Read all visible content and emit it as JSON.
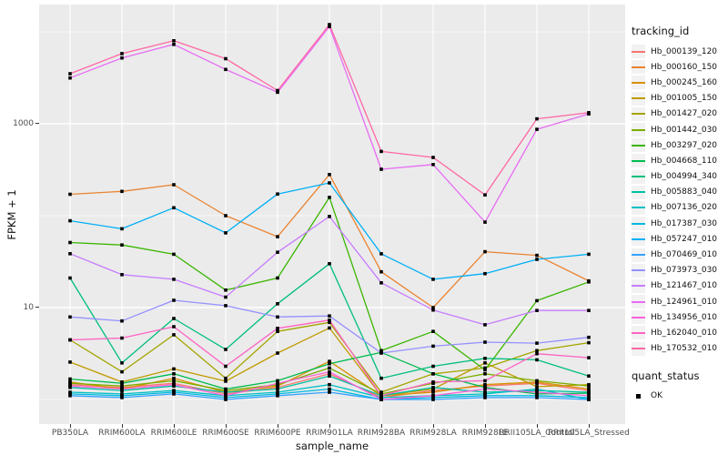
{
  "chart_data": {
    "type": "line",
    "title": "",
    "xlabel": "sample_name",
    "ylabel": "FPKM + 1",
    "x_categories": [
      "PB350LA",
      "RRIM600LA",
      "RRIM600LE",
      "RRIM600SE",
      "RRIM600PE",
      "RRIM901LA",
      "RRIM928BA",
      "RRIM928LA",
      "RRIM928LE",
      "RRII105LA_Control",
      "RRII105LA_Stressed"
    ],
    "y_scale": "log10",
    "y_tick_labels": [
      "1000",
      "10"
    ],
    "y_tick_values": [
      1000,
      10
    ],
    "y_minor_grid_values": [
      10000,
      100,
      1
    ],
    "ylim_log10": [
      -0.267,
      4.297
    ],
    "grid": "on",
    "panel_background": "#EBEBEB",
    "grid_color": "#FFFFFF",
    "point_shape": "filled-square",
    "point_color": "#000000",
    "legend_title": "tracking_id",
    "legend_position": "right",
    "legend2": {
      "title": "quant_status",
      "items": [
        {
          "label": "OK",
          "marker": "black-square"
        }
      ]
    },
    "series": [
      {
        "name": "Hb_000139_120",
        "color": "#F8766D",
        "values": [
          1.45,
          1.35,
          1.5,
          1.15,
          1.35,
          1.9,
          1.05,
          1.25,
          1.4,
          1.5,
          1.25
        ]
      },
      {
        "name": "Hb_000160_150",
        "color": "#EA8331",
        "values": [
          171,
          184,
          217,
          100,
          59,
          280,
          24.5,
          10,
          40.5,
          37,
          19.5
        ]
      },
      {
        "name": "Hb_000245_160",
        "color": "#D89000",
        "values": [
          1.55,
          1.3,
          1.7,
          1.2,
          1.4,
          2.6,
          1.1,
          1.2,
          1.45,
          1.55,
          1.3
        ]
      },
      {
        "name": "Hb_001005_150",
        "color": "#C09B00",
        "values": [
          2.55,
          1.55,
          2.15,
          1.58,
          3.2,
          6.0,
          1.1,
          1.3,
          2.5,
          1.38,
          1.45
        ]
      },
      {
        "name": "Hb_001427_020",
        "color": "#A3A500",
        "values": [
          4.45,
          2.0,
          5.06,
          1.7,
          5.5,
          6.9,
          1.2,
          1.9,
          2.2,
          3.4,
          4.15
        ]
      },
      {
        "name": "Hb_001442_030",
        "color": "#7CAE00",
        "values": [
          1.5,
          1.4,
          1.6,
          1.25,
          1.45,
          2.2,
          1.15,
          1.5,
          1.9,
          1.6,
          1.4
        ]
      },
      {
        "name": "Hb_003297_020",
        "color": "#39B600",
        "values": [
          51,
          48,
          38,
          15.5,
          21,
          158,
          3.4,
          5.5,
          2.1,
          11.9,
          19
        ]
      },
      {
        "name": "Hb_004668_110",
        "color": "#00BB4E",
        "values": [
          1.67,
          1.5,
          1.9,
          1.3,
          1.6,
          2.45,
          3.25,
          1.9,
          1.35,
          1.15,
          1.17
        ]
      },
      {
        "name": "Hb_004994_340",
        "color": "#00BF7D",
        "values": [
          21,
          2.5,
          7.6,
          3.5,
          11,
          30,
          1.7,
          2.3,
          2.8,
          2.7,
          1.8
        ]
      },
      {
        "name": "Hb_005883_040",
        "color": "#00C1A3",
        "values": [
          1.35,
          1.25,
          1.4,
          1.2,
          1.3,
          1.8,
          1.1,
          1.35,
          1.2,
          1.25,
          1.2
        ]
      },
      {
        "name": "Hb_007136_020",
        "color": "#00BFC4",
        "values": [
          1.2,
          1.15,
          1.25,
          1.1,
          1.2,
          1.45,
          1.05,
          1.1,
          1.15,
          1.3,
          1.0
        ]
      },
      {
        "name": "Hb_017387_030",
        "color": "#00BAE0",
        "values": [
          1.15,
          1.1,
          1.2,
          1.05,
          1.15,
          1.3,
          1.0,
          1.05,
          1.1,
          1.1,
          1.05
        ]
      },
      {
        "name": "Hb_057247_010",
        "color": "#00B0F6",
        "values": [
          88,
          72,
          122,
          65,
          172,
          227,
          38.5,
          20.3,
          23.4,
          33.5,
          38
        ]
      },
      {
        "name": "Hb_070469_010",
        "color": "#35A2FF",
        "values": [
          1.1,
          1.05,
          1.15,
          1.0,
          1.1,
          1.2,
          1.0,
          1.0,
          1.05,
          1.05,
          1.0
        ]
      },
      {
        "name": "Hb_073973_030",
        "color": "#9590FF",
        "values": [
          7.9,
          7.15,
          12,
          10.5,
          7.9,
          8.1,
          3.2,
          3.8,
          4.2,
          4.1,
          4.75
        ]
      },
      {
        "name": "Hb_121467_010",
        "color": "#C77CFF",
        "values": [
          38.6,
          22.8,
          20.3,
          13,
          40,
          98,
          18.6,
          9.4,
          6.5,
          9.3,
          9.3
        ]
      },
      {
        "name": "Hb_124961_010",
        "color": "#E76BF3",
        "values": [
          3150,
          5200,
          7300,
          3900,
          2200,
          11400,
          320,
          360,
          85,
          870,
          1280
        ]
      },
      {
        "name": "Hb_134956_010",
        "color": "#FA62DB",
        "values": [
          1.4,
          1.3,
          1.45,
          1.1,
          1.5,
          2.0,
          1.0,
          1.1,
          1.3,
          1.2,
          1.1
        ]
      },
      {
        "name": "Hb_162040_010",
        "color": "#FF61C3",
        "values": [
          4.45,
          4.66,
          6.2,
          2.3,
          5.95,
          7.3,
          1.1,
          1.55,
          1.6,
          3.15,
          2.85
        ]
      },
      {
        "name": "Hb_170532_010",
        "color": "#FF67A4",
        "values": [
          3500,
          5800,
          8000,
          5100,
          2300,
          12000,
          500,
          430,
          168,
          1130,
          1320
        ]
      }
    ]
  }
}
